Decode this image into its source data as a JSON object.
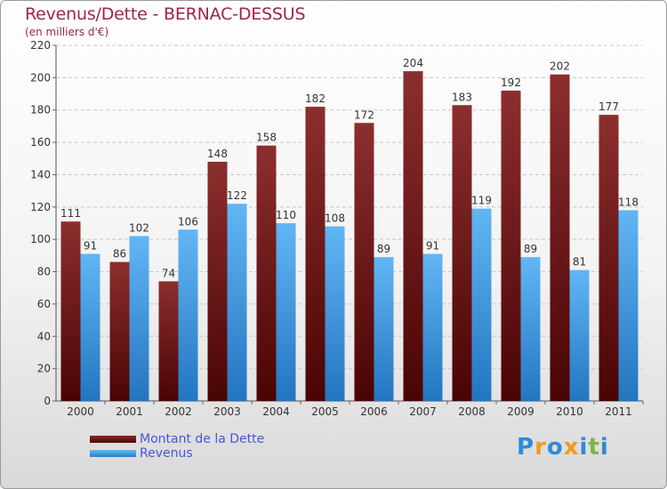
{
  "header": {
    "title": "Revenus/Dette - BERNAC-DESSUS",
    "subtitle": "(en milliers d'€)"
  },
  "chart_data": {
    "type": "bar",
    "categories": [
      "2000",
      "2001",
      "2002",
      "2003",
      "2004",
      "2005",
      "2006",
      "2007",
      "2008",
      "2009",
      "2010",
      "2011"
    ],
    "series": [
      {
        "name": "Montant de la Dette",
        "color": "#7a1a1a",
        "values": [
          111,
          86,
          74,
          148,
          158,
          182,
          172,
          204,
          183,
          192,
          202,
          177
        ]
      },
      {
        "name": "Revenus",
        "color": "#4aa3e8",
        "values": [
          91,
          102,
          106,
          122,
          110,
          108,
          89,
          91,
          119,
          89,
          81,
          118
        ]
      }
    ],
    "ylim": [
      0,
      220
    ],
    "yticks": [
      0,
      20,
      40,
      60,
      80,
      100,
      120,
      140,
      160,
      180,
      200,
      220
    ],
    "grid": true,
    "data_labels": true,
    "legend_position": "bottom-left"
  },
  "brand": {
    "letters": [
      "P",
      "r",
      "o",
      "x",
      "i",
      "t",
      "i"
    ],
    "colors": [
      "#2e8bd6",
      "#f29a1f",
      "#2e8bd6",
      "#f29a1f",
      "#2e8bd6",
      "#7ab648",
      "#2e8bd6"
    ]
  }
}
